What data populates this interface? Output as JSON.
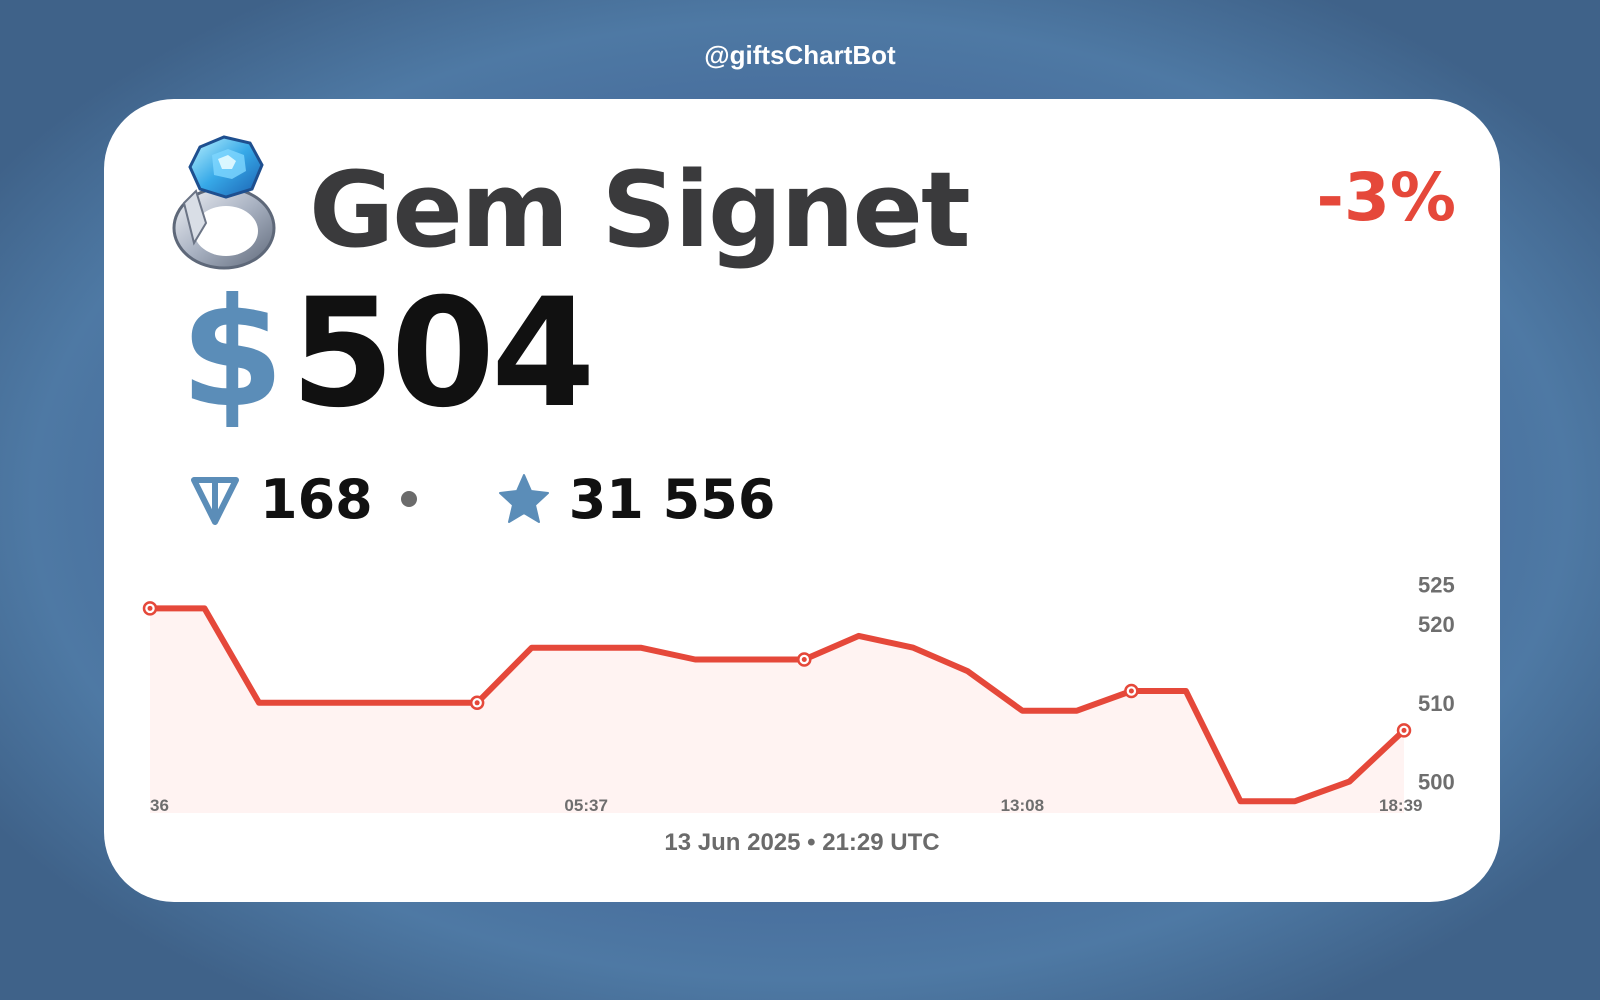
{
  "bot_handle": "@giftsChartBot",
  "gift": {
    "name": "Gem Signet",
    "icon": "gem-signet-ring-icon",
    "change": "-3%",
    "change_color": "#e5483a"
  },
  "price": {
    "usd_symbol": "$",
    "usd_value": "504",
    "ton_value": "168",
    "stars_value": "31 556",
    "ton_icon": "ton-coin-icon",
    "stars_icon": "telegram-star-icon",
    "accent_color": "#5b8db8"
  },
  "footer": {
    "date": "13 Jun 2025 • 21:29 UTC"
  },
  "chart_data": {
    "type": "area",
    "line_color": "#e5483a",
    "fill_color": "#fff3f2",
    "y": [
      522,
      522,
      510,
      510,
      510,
      510,
      510,
      517,
      517,
      517,
      515.5,
      515.5,
      515.5,
      518.5,
      517,
      514,
      509,
      509,
      511.5,
      511.5,
      497.5,
      497.5,
      500,
      506.5
    ],
    "markers": [
      0,
      6,
      12,
      18,
      23
    ],
    "ylim": [
      496,
      527
    ],
    "yticks": [
      500,
      510,
      520,
      525
    ],
    "xtick_labels": [
      "36",
      "05:37",
      "13:08",
      "18:39"
    ],
    "xtick_positions": [
      0,
      8,
      16,
      23
    ],
    "grid": false
  }
}
